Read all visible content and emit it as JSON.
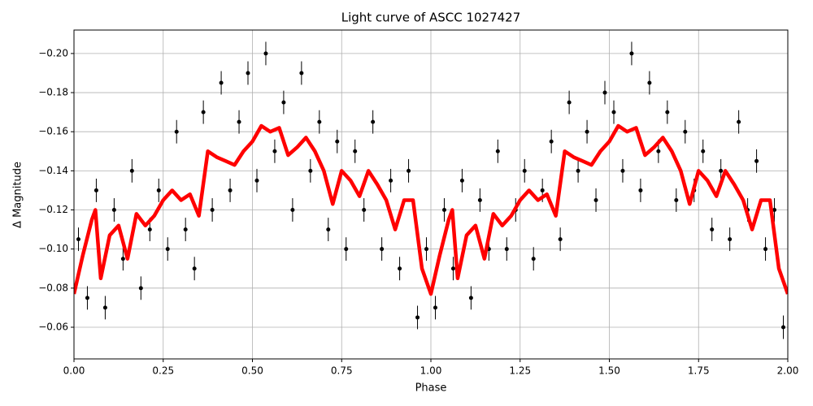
{
  "chart_data": {
    "type": "scatter",
    "title": "Light curve of ASCC 1027427",
    "xlabel": "Phase",
    "ylabel": "Δ Magnitude",
    "xlim": [
      0,
      2
    ],
    "ylim": [
      -0.0438,
      -0.212
    ],
    "xticks": [
      {
        "value": 0,
        "label": "0.00"
      },
      {
        "value": 0.25,
        "label": "0.25"
      },
      {
        "value": 0.5,
        "label": "0.50"
      },
      {
        "value": 0.75,
        "label": "0.75"
      },
      {
        "value": 1,
        "label": "1.00"
      },
      {
        "value": 1.25,
        "label": "1.25"
      },
      {
        "value": 1.5,
        "label": "1.50"
      },
      {
        "value": 1.75,
        "label": "1.75"
      },
      {
        "value": 2,
        "label": "2.00"
      }
    ],
    "yticks": [
      {
        "value": -0.06,
        "label": "−0.06"
      },
      {
        "value": -0.08,
        "label": "−0.08"
      },
      {
        "value": -0.1,
        "label": "−0.10"
      },
      {
        "value": -0.12,
        "label": "−0.12"
      },
      {
        "value": -0.14,
        "label": "−0.14"
      },
      {
        "value": -0.16,
        "label": "−0.16"
      },
      {
        "value": -0.18,
        "label": "−0.18"
      },
      {
        "value": -0.2,
        "label": "−0.20"
      }
    ],
    "grid": true,
    "points": {
      "color": "#000000",
      "yerr": 0.006,
      "x": [
        0.0125,
        0.0375,
        0.0625,
        0.0875,
        0.1125,
        0.1375,
        0.1625,
        0.1875,
        0.2125,
        0.2375,
        0.2625,
        0.2875,
        0.3125,
        0.3375,
        0.3625,
        0.3875,
        0.4125,
        0.4375,
        0.4625,
        0.4875,
        0.5125,
        0.5375,
        0.5625,
        0.5875,
        0.6125,
        0.6375,
        0.6625,
        0.6875,
        0.7125,
        0.7375,
        0.7625,
        0.7875,
        0.8125,
        0.8375,
        0.8625,
        0.8875,
        0.9125,
        0.9375,
        0.9625,
        0.9875,
        1.0125,
        1.0375,
        1.0625,
        1.0875,
        1.1125,
        1.1375,
        1.1625,
        1.1875,
        1.2125,
        1.2375,
        1.2625,
        1.2875,
        1.3125,
        1.3375,
        1.3625,
        1.3875,
        1.4125,
        1.4375,
        1.4625,
        1.4875,
        1.5125,
        1.5375,
        1.5625,
        1.5875,
        1.6125,
        1.6375,
        1.6625,
        1.6875,
        1.7125,
        1.7375,
        1.7625,
        1.7875,
        1.8125,
        1.8375,
        1.8625,
        1.8875,
        1.9125,
        1.9375,
        1.9625,
        1.9875
      ],
      "y": [
        -0.105,
        -0.075,
        -0.13,
        -0.07,
        -0.12,
        -0.095,
        -0.14,
        -0.08,
        -0.11,
        -0.13,
        -0.1,
        -0.16,
        -0.11,
        -0.09,
        -0.17,
        -0.12,
        -0.185,
        -0.13,
        -0.165,
        -0.19,
        -0.135,
        -0.2,
        -0.15,
        -0.175,
        -0.12,
        -0.19,
        -0.14,
        -0.165,
        -0.11,
        -0.155,
        -0.1,
        -0.15,
        -0.12,
        -0.165,
        -0.1,
        -0.135,
        -0.09,
        -0.14,
        -0.065,
        -0.1,
        -0.07,
        -0.12,
        -0.09,
        -0.135,
        -0.075,
        -0.125,
        -0.1,
        -0.15,
        -0.1,
        -0.12,
        -0.14,
        -0.095,
        -0.13,
        -0.155,
        -0.105,
        -0.175,
        -0.14,
        -0.16,
        -0.125,
        -0.18,
        -0.17,
        -0.14,
        -0.2,
        -0.13,
        -0.185,
        -0.15,
        -0.17,
        -0.125,
        -0.16,
        -0.13,
        -0.15,
        -0.11,
        -0.14,
        -0.105,
        -0.165,
        -0.12,
        -0.145,
        -0.1,
        -0.12,
        -0.06
      ]
    },
    "curve": {
      "color": "#ff0000",
      "x": [
        0,
        0.025,
        0.05,
        0.06,
        0.075,
        0.1,
        0.125,
        0.15,
        0.175,
        0.2,
        0.225,
        0.25,
        0.275,
        0.3,
        0.325,
        0.35,
        0.375,
        0.4,
        0.425,
        0.45,
        0.475,
        0.5,
        0.525,
        0.55,
        0.575,
        0.6,
        0.625,
        0.65,
        0.675,
        0.7,
        0.725,
        0.75,
        0.775,
        0.8,
        0.825,
        0.85,
        0.875,
        0.9,
        0.925,
        0.95,
        0.975,
        1,
        1.025,
        1.05,
        1.06,
        1.075,
        1.1,
        1.125,
        1.15,
        1.175,
        1.2,
        1.225,
        1.25,
        1.275,
        1.3,
        1.325,
        1.35,
        1.375,
        1.4,
        1.425,
        1.45,
        1.475,
        1.5,
        1.525,
        1.55,
        1.575,
        1.6,
        1.625,
        1.65,
        1.675,
        1.7,
        1.725,
        1.75,
        1.775,
        1.8,
        1.825,
        1.85,
        1.875,
        1.9,
        1.925,
        1.95,
        1.975,
        2
      ],
      "values": [
        -0.077,
        -0.097,
        -0.115,
        -0.12,
        -0.085,
        -0.107,
        -0.112,
        -0.095,
        -0.118,
        -0.112,
        -0.117,
        -0.125,
        -0.13,
        -0.125,
        -0.128,
        -0.117,
        -0.15,
        -0.147,
        -0.145,
        -0.143,
        -0.15,
        -0.155,
        -0.163,
        -0.16,
        -0.162,
        -0.148,
        -0.152,
        -0.157,
        -0.15,
        -0.14,
        -0.123,
        -0.14,
        -0.135,
        -0.127,
        -0.14,
        -0.133,
        -0.125,
        -0.11,
        -0.125,
        -0.125,
        -0.09,
        -0.077,
        -0.097,
        -0.115,
        -0.12,
        -0.085,
        -0.107,
        -0.112,
        -0.095,
        -0.118,
        -0.112,
        -0.117,
        -0.125,
        -0.13,
        -0.125,
        -0.128,
        -0.117,
        -0.15,
        -0.147,
        -0.145,
        -0.143,
        -0.15,
        -0.155,
        -0.163,
        -0.16,
        -0.162,
        -0.148,
        -0.152,
        -0.157,
        -0.15,
        -0.14,
        -0.123,
        -0.14,
        -0.135,
        -0.127,
        -0.14,
        -0.133,
        -0.125,
        -0.11,
        -0.125,
        -0.125,
        -0.09,
        -0.077
      ]
    }
  }
}
